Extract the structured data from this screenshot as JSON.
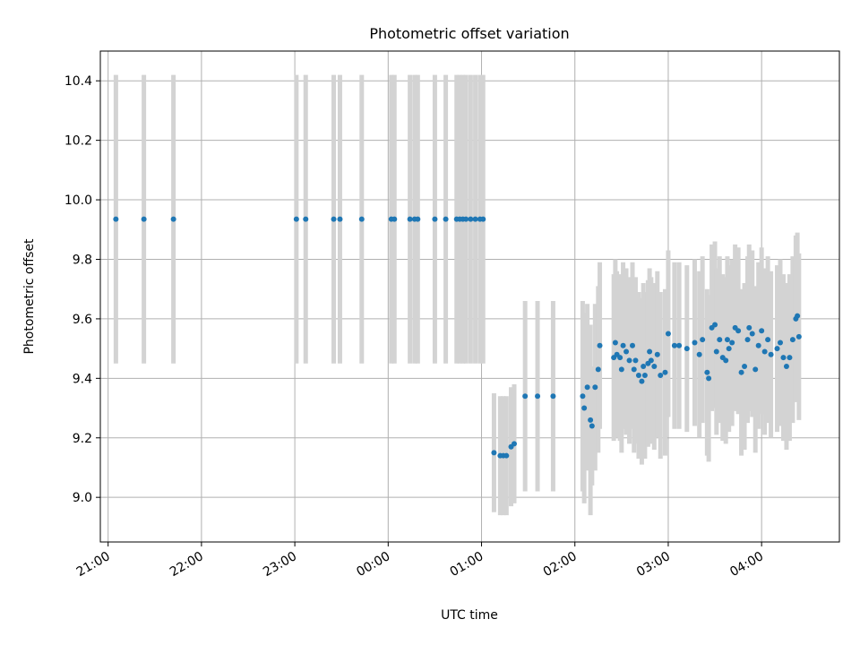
{
  "chart_data": {
    "type": "scatter",
    "title": "Photometric offset variation",
    "xlabel": "UTC time",
    "ylabel": "Photometric offset",
    "x_unit": "UTC time (HH:MM)",
    "xlim": [
      "20:55",
      "04:50"
    ],
    "ylim": [
      8.85,
      10.5
    ],
    "x_ticks": [
      "21:00",
      "22:00",
      "23:00",
      "00:00",
      "01:00",
      "02:00",
      "03:00",
      "04:00"
    ],
    "y_ticks": [
      "9.0",
      "9.2",
      "9.4",
      "9.6",
      "9.8",
      "10.0",
      "10.2",
      "10.4"
    ],
    "grid": true,
    "legend": "none",
    "point_color": "#1f77b4",
    "errorbar_color": "#d3d3d3",
    "series": [
      {
        "x": [
          "21:05",
          "21:23",
          "21:42",
          "23:01",
          "23:07",
          "23:25",
          "23:29",
          "23:43",
          "00:02",
          "00:04",
          "00:14",
          "00:17",
          "00:19",
          "00:30",
          "00:37",
          "00:44",
          "00:46",
          "00:48",
          "00:50",
          "00:53",
          "00:56",
          "00:59",
          "01:01",
          "01:08",
          "01:12",
          "01:14",
          "01:16",
          "01:19",
          "01:21",
          "01:28",
          "01:36",
          "01:46",
          "02:05",
          "02:06",
          "02:08",
          "02:10",
          "02:11",
          "02:13",
          "02:15",
          "02:16",
          "02:25",
          "02:26",
          "02:27",
          "02:29",
          "02:30",
          "02:31",
          "02:33",
          "02:35",
          "02:37",
          "02:38",
          "02:39",
          "02:41",
          "02:43",
          "02:44",
          "02:45",
          "02:47",
          "02:48",
          "02:49",
          "02:51",
          "02:53",
          "02:55",
          "02:58",
          "03:00",
          "03:04",
          "03:07",
          "03:12",
          "03:17",
          "03:20",
          "03:22",
          "03:25",
          "03:26",
          "03:28",
          "03:30",
          "03:31",
          "03:33",
          "03:35",
          "03:37",
          "03:38",
          "03:39",
          "03:41",
          "03:43",
          "03:45",
          "03:47",
          "03:49",
          "03:51",
          "03:52",
          "03:54",
          "03:56",
          "03:58",
          "04:00",
          "04:02",
          "04:04",
          "04:06",
          "04:10",
          "04:12",
          "04:14",
          "04:16",
          "04:18",
          "04:20",
          "04:22",
          "04:23",
          "04:24"
        ],
        "y": [
          9.935,
          9.935,
          9.935,
          9.935,
          9.935,
          9.935,
          9.935,
          9.935,
          9.935,
          9.935,
          9.935,
          9.935,
          9.935,
          9.935,
          9.935,
          9.935,
          9.935,
          9.935,
          9.935,
          9.935,
          9.935,
          9.935,
          9.935,
          9.15,
          9.14,
          9.14,
          9.14,
          9.17,
          9.18,
          9.34,
          9.34,
          9.34,
          9.34,
          9.3,
          9.37,
          9.26,
          9.24,
          9.37,
          9.43,
          9.51,
          9.47,
          9.52,
          9.48,
          9.47,
          9.43,
          9.51,
          9.49,
          9.46,
          9.51,
          9.43,
          9.46,
          9.41,
          9.39,
          9.44,
          9.41,
          9.45,
          9.49,
          9.46,
          9.44,
          9.48,
          9.41,
          9.42,
          9.55,
          9.51,
          9.51,
          9.5,
          9.52,
          9.48,
          9.53,
          9.42,
          9.4,
          9.57,
          9.58,
          9.49,
          9.53,
          9.47,
          9.46,
          9.53,
          9.5,
          9.52,
          9.57,
          9.56,
          9.42,
          9.44,
          9.53,
          9.57,
          9.55,
          9.43,
          9.51,
          9.56,
          9.49,
          9.53,
          9.48,
          9.5,
          9.52,
          9.47,
          9.44,
          9.47,
          9.53,
          9.6,
          9.61,
          9.54
        ]
      }
    ]
  }
}
